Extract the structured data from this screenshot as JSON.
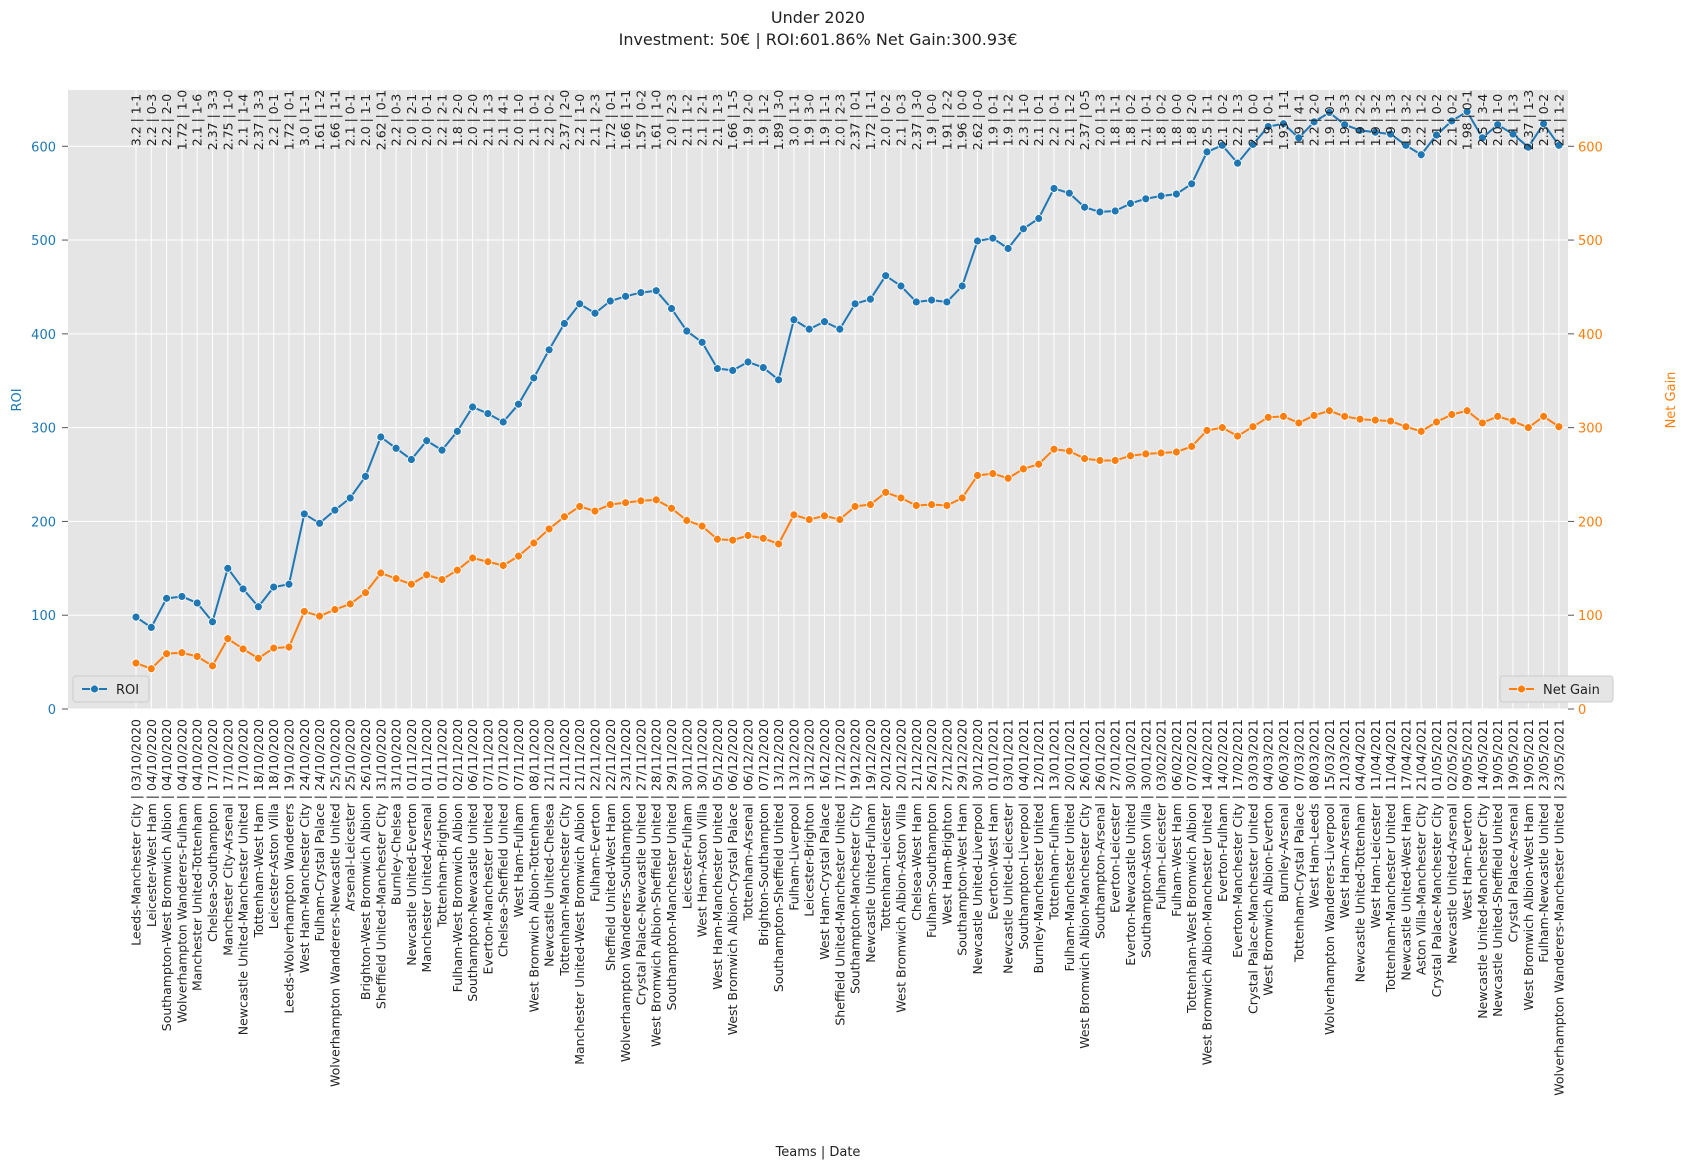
{
  "chart_data": {
    "type": "line",
    "title": "Under 2020",
    "subtitle": "Investment: 50€ | ROI:601.86% Net Gain:300.93€",
    "xlabel": "Teams | Date",
    "ylabel_left": "ROI",
    "ylabel_right": "Net Gain",
    "ylim_left": [
      0,
      660
    ],
    "ylim_right": [
      0,
      660
    ],
    "yticks": [
      0,
      100,
      200,
      300,
      400,
      500,
      600
    ],
    "grid": true,
    "legend_left": "lower-left",
    "legend_right": "lower-right",
    "colors": {
      "roi": "#1f77b4",
      "net_gain": "#ff7f0e",
      "background": "#e5e5e5",
      "grid": "#ffffff"
    },
    "categories": [
      "Leeds-Manchester City | 03/10/2020",
      "Leicester-West Ham | 04/10/2020",
      "Southampton-West Bromwich Albion | 04/10/2020",
      "Wolverhampton Wanderers-Fulham | 04/10/2020",
      "Manchester United-Tottenham | 04/10/2020",
      "Chelsea-Southampton | 17/10/2020",
      "Manchester City-Arsenal | 17/10/2020",
      "Newcastle United-Manchester United | 17/10/2020",
      "Tottenham-West Ham | 18/10/2020",
      "Leicester-Aston Villa | 18/10/2020",
      "Leeds-Wolverhampton Wanderers | 19/10/2020",
      "West Ham-Manchester City | 24/10/2020",
      "Fulham-Crystal Palace | 24/10/2020",
      "Wolverhampton Wanderers-Newcastle United | 25/10/2020",
      "Arsenal-Leicester | 25/10/2020",
      "Brighton-West Bromwich Albion | 26/10/2020",
      "Sheffield United-Manchester City | 31/10/2020",
      "Burnley-Chelsea | 31/10/2020",
      "Newcastle United-Everton | 01/11/2020",
      "Manchester United-Arsenal | 01/11/2020",
      "Tottenham-Brighton | 01/11/2020",
      "Fulham-West Bromwich Albion | 02/11/2020",
      "Southampton-Newcastle United | 06/11/2020",
      "Everton-Manchester United | 07/11/2020",
      "Chelsea-Sheffield United | 07/11/2020",
      "West Ham-Fulham | 07/11/2020",
      "West Bromwich Albion-Tottenham | 08/11/2020",
      "Newcastle United-Chelsea | 21/11/2020",
      "Tottenham-Manchester City | 21/11/2020",
      "Manchester United-West Bromwich Albion | 21/11/2020",
      "Fulham-Everton | 22/11/2020",
      "Sheffield United-West Ham | 22/11/2020",
      "Wolverhampton Wanderers-Southampton | 23/11/2020",
      "Crystal Palace-Newcastle United | 27/11/2020",
      "West Bromwich Albion-Sheffield United | 28/11/2020",
      "Southampton-Manchester United | 29/11/2020",
      "Leicester-Fulham | 30/11/2020",
      "West Ham-Aston Villa | 30/11/2020",
      "West Ham-Manchester United | 05/12/2020",
      "West Bromwich Albion-Crystal Palace | 06/12/2020",
      "Tottenham-Arsenal | 06/12/2020",
      "Brighton-Southampton | 07/12/2020",
      "Southampton-Sheffield United | 13/12/2020",
      "Fulham-Liverpool | 13/12/2020",
      "Leicester-Brighton | 13/12/2020",
      "West Ham-Crystal Palace | 16/12/2020",
      "Sheffield United-Manchester United | 17/12/2020",
      "Southampton-Manchester City | 19/12/2020",
      "Newcastle United-Fulham | 19/12/2020",
      "Tottenham-Leicester | 20/12/2020",
      "West Bromwich Albion-Aston Villa | 20/12/2020",
      "Chelsea-West Ham | 21/12/2020",
      "Fulham-Southampton | 26/12/2020",
      "West Ham-Brighton | 27/12/2020",
      "Southampton-West Ham | 29/12/2020",
      "Newcastle United-Liverpool | 30/12/2020",
      "Everton-West Ham | 01/01/2021",
      "Newcastle United-Leicester | 03/01/2021",
      "Southampton-Liverpool | 04/01/2021",
      "Burnley-Manchester United | 12/01/2021",
      "Tottenham-Fulham | 13/01/2021",
      "Fulham-Manchester United | 20/01/2021",
      "West Bromwich Albion-Manchester City | 26/01/2021",
      "Southampton-Arsenal | 26/01/2021",
      "Everton-Leicester | 27/01/2021",
      "Everton-Newcastle United | 30/01/2021",
      "Southampton-Aston Villa | 30/01/2021",
      "Fulham-Leicester | 03/02/2021",
      "Fulham-West Ham | 06/02/2021",
      "Tottenham-West Bromwich Albion | 07/02/2021",
      "West Bromwich Albion-Manchester United | 14/02/2021",
      "Everton-Fulham | 14/02/2021",
      "Everton-Manchester City | 17/02/2021",
      "Crystal Palace-Manchester United | 03/03/2021",
      "West Bromwich Albion-Everton | 04/03/2021",
      "Burnley-Arsenal | 06/03/2021",
      "Tottenham-Crystal Palace | 07/03/2021",
      "West Ham-Leeds | 08/03/2021",
      "Wolverhampton Wanderers-Liverpool | 15/03/2021",
      "West Ham-Arsenal | 21/03/2021",
      "Newcastle United-Tottenham | 04/04/2021",
      "West Ham-Leicester | 11/04/2021",
      "Tottenham-Manchester United | 11/04/2021",
      "Newcastle United-West Ham | 17/04/2021",
      "Aston Villa-Manchester City | 21/04/2021",
      "Crystal Palace-Manchester City | 01/05/2021",
      "Newcastle United-Arsenal | 02/05/2021",
      "West Ham-Everton | 09/05/2021",
      "Newcastle United-Manchester City | 14/05/2021",
      "Newcastle United-Sheffield United | 19/05/2021",
      "Crystal Palace-Arsenal | 19/05/2021",
      "West Bromwich Albion-West Ham | 19/05/2021",
      "Fulham-Newcastle United | 23/05/2021",
      "Wolverhampton Wanderers-Manchester United | 23/05/2021"
    ],
    "top_labels": [
      "3.2 | 1-1",
      "2.2 | 0-3",
      "2.2 | 2-0",
      "1.72 | 1-0",
      "2.1 | 1-6",
      "2.37 | 3-3",
      "2.75 | 1-0",
      "2.1 | 1-4",
      "2.37 | 3-3",
      "2.2 | 0-1",
      "1.72 | 0-1",
      "3.0 | 1-1",
      "1.61 | 1-2",
      "1.66 | 1-1",
      "2.1 | 0-1",
      "2.0 | 1-1",
      "2.62 | 0-1",
      "2.2 | 0-3",
      "2.0 | 2-1",
      "2.0 | 0-1",
      "2.2 | 2-1",
      "1.8 | 2-0",
      "2.0 | 2-0",
      "2.1 | 1-3",
      "2.1 | 4-1",
      "2.0 | 1-0",
      "2.1 | 0-1",
      "2.2 | 0-2",
      "2.37 | 2-0",
      "2.2 | 1-0",
      "2.1 | 2-3",
      "1.72 | 0-1",
      "1.66 | 1-1",
      "1.57 | 0-2",
      "1.61 | 1-0",
      "2.0 | 2-3",
      "2.1 | 1-2",
      "2.1 | 2-1",
      "2.1 | 1-3",
      "1.66 | 1-5",
      "1.9 | 2-0",
      "1.9 | 1-2",
      "1.89 | 3-0",
      "3.0 | 1-1",
      "1.9 | 3-0",
      "1.9 | 1-1",
      "2.0 | 2-3",
      "2.37 | 0-1",
      "1.72 | 1-1",
      "2.0 | 0-2",
      "2.1 | 0-3",
      "2.37 | 3-0",
      "1.9 | 0-0",
      "1.91 | 2-2",
      "1.96 | 0-0",
      "2.62 | 0-0",
      "1.9 | 0-1",
      "1.9 | 1-2",
      "2.3 | 1-0",
      "2.1 | 0-1",
      "2.2 | 0-1",
      "2.1 | 1-2",
      "2.37 | 0-5",
      "2.0 | 1-3",
      "1.8 | 1-1",
      "1.8 | 0-2",
      "2.1 | 0-1",
      "1.8 | 0-2",
      "1.8 | 0-0",
      "1.8 | 2-0",
      "2.5 | 1-1",
      "2.1 | 0-2",
      "2.2 | 1-3",
      "2.1 | 0-0",
      "1.9 | 0-1",
      "1.93 | 1-1",
      "1.9 | 4-1",
      "2.2 | 2-0",
      "1.9 | 0-1",
      "1.9 | 3-3",
      "1.9 | 2-2",
      "1.9 | 3-2",
      "1.9 | 1-3",
      "1.9 | 3-2",
      "2.2 | 1-2",
      "2.1 | 0-2",
      "2.1 | 0-2",
      "1.98 | 0-1",
      "2.5 | 3-4",
      "2.0 | 1-0",
      "2.1 | 1-3",
      "2.37 | 1-3",
      "2.3 | 0-2",
      "2.1 | 1-2"
    ],
    "series": [
      {
        "name": "ROI",
        "values": [
          98,
          87,
          118,
          120,
          113,
          93,
          150,
          128,
          109,
          130,
          133,
          208,
          198,
          212,
          225,
          248,
          290,
          278,
          266,
          286,
          276,
          296,
          322,
          315,
          306,
          325,
          353,
          383,
          411,
          432,
          422,
          435,
          440,
          444,
          446,
          427,
          403,
          391,
          363,
          361,
          370,
          364,
          351,
          415,
          405,
          413,
          405,
          432,
          437,
          462,
          451,
          434,
          436,
          434,
          451,
          499,
          502,
          491,
          512,
          523,
          555,
          550,
          535,
          530,
          531,
          539,
          544,
          547,
          549,
          560,
          594,
          601,
          582,
          602,
          621,
          624,
          609,
          626,
          636,
          623,
          617,
          615,
          613,
          601,
          591,
          612,
          627,
          637,
          609,
          623,
          613,
          599,
          624,
          601
        ]
      },
      {
        "name": "Net Gain",
        "values": [
          49,
          43,
          59,
          60,
          56,
          46,
          75,
          64,
          54,
          65,
          66,
          104,
          99,
          106,
          112,
          124,
          145,
          139,
          133,
          143,
          138,
          148,
          161,
          157,
          153,
          163,
          177,
          192,
          205,
          216,
          211,
          218,
          220,
          222,
          223,
          214,
          201,
          195,
          181,
          180,
          185,
          182,
          176,
          207,
          202,
          206,
          202,
          216,
          218,
          231,
          225,
          217,
          218,
          217,
          225,
          249,
          251,
          246,
          256,
          261,
          277,
          275,
          267,
          265,
          265,
          270,
          272,
          273,
          274,
          280,
          297,
          300,
          291,
          301,
          311,
          312,
          305,
          313,
          318,
          312,
          309,
          308,
          307,
          301,
          296,
          306,
          314,
          318,
          305,
          312,
          307,
          300,
          312,
          301
        ]
      }
    ]
  }
}
